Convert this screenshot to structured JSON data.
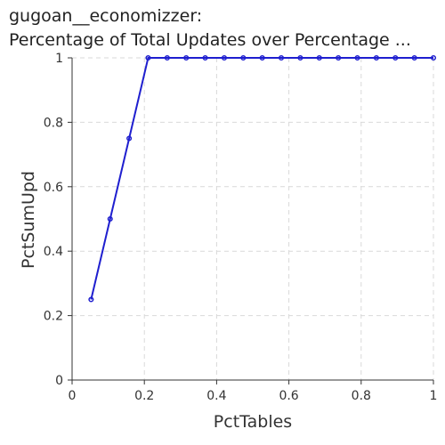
{
  "chart_data": {
    "type": "line",
    "title_lines": [
      "gugoan__economizzer:",
      "Percentage of Total Updates over Percentage ..."
    ],
    "xlabel": "PctTables",
    "ylabel": "PctSumUpd",
    "xlim": [
      0,
      1
    ],
    "ylim": [
      0,
      1
    ],
    "x_ticks": [
      0,
      0.2,
      0.4,
      0.6,
      0.8,
      1
    ],
    "x_tick_labels": [
      "0",
      "0.2",
      "0.4",
      "0.6",
      "0.8",
      "1"
    ],
    "y_ticks": [
      0,
      0.2,
      0.4,
      0.6,
      0.8,
      1
    ],
    "y_tick_labels": [
      "0",
      "0.2",
      "0.4",
      "0.6",
      "0.8",
      "1"
    ],
    "grid": true,
    "series": [
      {
        "color": "#1f1fcf",
        "x": [
          0.0526,
          0.1053,
          0.1579,
          0.2105,
          0.2632,
          0.3158,
          0.3684,
          0.4211,
          0.4737,
          0.5263,
          0.5789,
          0.6316,
          0.6842,
          0.7368,
          0.7895,
          0.8421,
          0.8947,
          0.9474,
          1.0
        ],
        "y": [
          0.25,
          0.5,
          0.75,
          1,
          1,
          1,
          1,
          1,
          1,
          1,
          1,
          1,
          1,
          1,
          1,
          1,
          1,
          1,
          1
        ]
      }
    ]
  }
}
